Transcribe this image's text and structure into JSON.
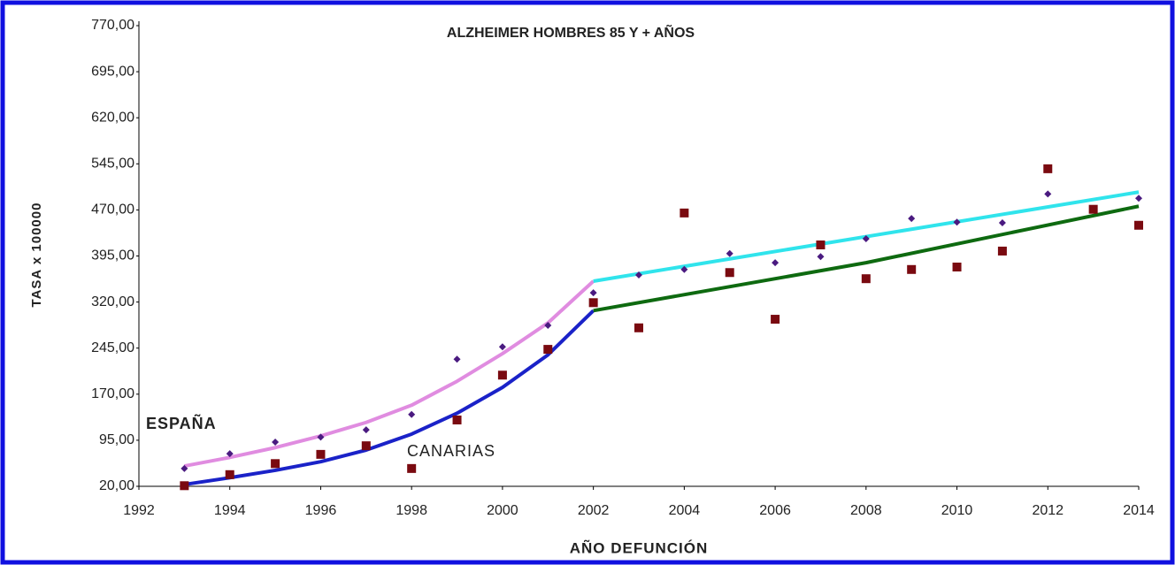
{
  "chart_data": {
    "type": "scatter",
    "title": "ALZHEIMER HOMBRES 85 Y + AÑOS",
    "xlabel": "AÑO DEFUNCIÓN",
    "ylabel": "TASA x 100000",
    "annotations": [
      {
        "text": "ESPAÑA",
        "color": "#e0303c"
      },
      {
        "text": "CANARIAS",
        "color": "#4a5cc8"
      }
    ],
    "xlim": [
      1992,
      2014
    ],
    "xticks": [
      1992,
      1994,
      1996,
      1998,
      2000,
      2002,
      2004,
      2006,
      2008,
      2010,
      2012,
      2014
    ],
    "ylim": [
      20,
      770
    ],
    "yticks": [
      {
        "value": 20,
        "label": "20,00"
      },
      {
        "value": 95,
        "label": "95,00"
      },
      {
        "value": 170,
        "label": "170,00"
      },
      {
        "value": 245,
        "label": "245,00"
      },
      {
        "value": 320,
        "label": "320,00"
      },
      {
        "value": 395,
        "label": "395,00"
      },
      {
        "value": 470,
        "label": "470,00"
      },
      {
        "value": 545,
        "label": "545,00"
      },
      {
        "value": 620,
        "label": "620,00"
      },
      {
        "value": 695,
        "label": "695,00"
      },
      {
        "value": 770,
        "label": "770,00"
      }
    ],
    "series": [
      {
        "type": "line",
        "color": "#e08ce0",
        "x": [
          1993,
          1994,
          1995,
          1996,
          1997,
          1998,
          1999,
          2000,
          2001,
          2002
        ],
        "values": [
          53,
          67,
          83,
          102,
          124,
          152,
          191,
          236,
          286,
          354
        ]
      },
      {
        "type": "line",
        "color": "#1a22c8",
        "x": [
          1993,
          1994,
          1995,
          1996,
          1997,
          1998,
          1999,
          2000,
          2001,
          2002
        ],
        "values": [
          23,
          34,
          46,
          60,
          79,
          105,
          139,
          181,
          234,
          306
        ]
      },
      {
        "type": "line",
        "color": "#30e4ec",
        "x": [
          2002,
          2014
        ],
        "values": [
          354,
          499
        ]
      },
      {
        "type": "line",
        "color": "#0e6a10",
        "x": [
          2002,
          2008,
          2014
        ],
        "values": [
          306,
          384,
          476
        ]
      },
      {
        "type": "scatter",
        "marker": "diamond",
        "color": "#4a1a80",
        "x": [
          1993,
          1994,
          1995,
          1996,
          1997,
          1998,
          1999,
          2000,
          2001,
          2002,
          2003,
          2004,
          2005,
          2006,
          2007,
          2008,
          2009,
          2010,
          2011,
          2012,
          2013,
          2014
        ],
        "values": [
          49,
          73,
          92,
          100,
          112,
          137,
          227,
          247,
          282,
          335,
          364,
          373,
          399,
          384,
          394,
          423,
          456,
          450,
          449,
          496,
          471,
          489
        ]
      },
      {
        "type": "scatter",
        "marker": "square",
        "color": "#7a0a10",
        "x": [
          1993,
          1994,
          1995,
          1996,
          1997,
          1998,
          1999,
          2000,
          2001,
          2002,
          2003,
          2004,
          2005,
          2006,
          2007,
          2008,
          2009,
          2010,
          2011,
          2012,
          2013,
          2014
        ],
        "values": [
          21,
          39,
          57,
          72,
          86,
          49,
          128,
          201,
          243,
          319,
          278,
          465,
          368,
          292,
          413,
          358,
          373,
          377,
          403,
          537,
          471,
          445
        ]
      }
    ]
  }
}
